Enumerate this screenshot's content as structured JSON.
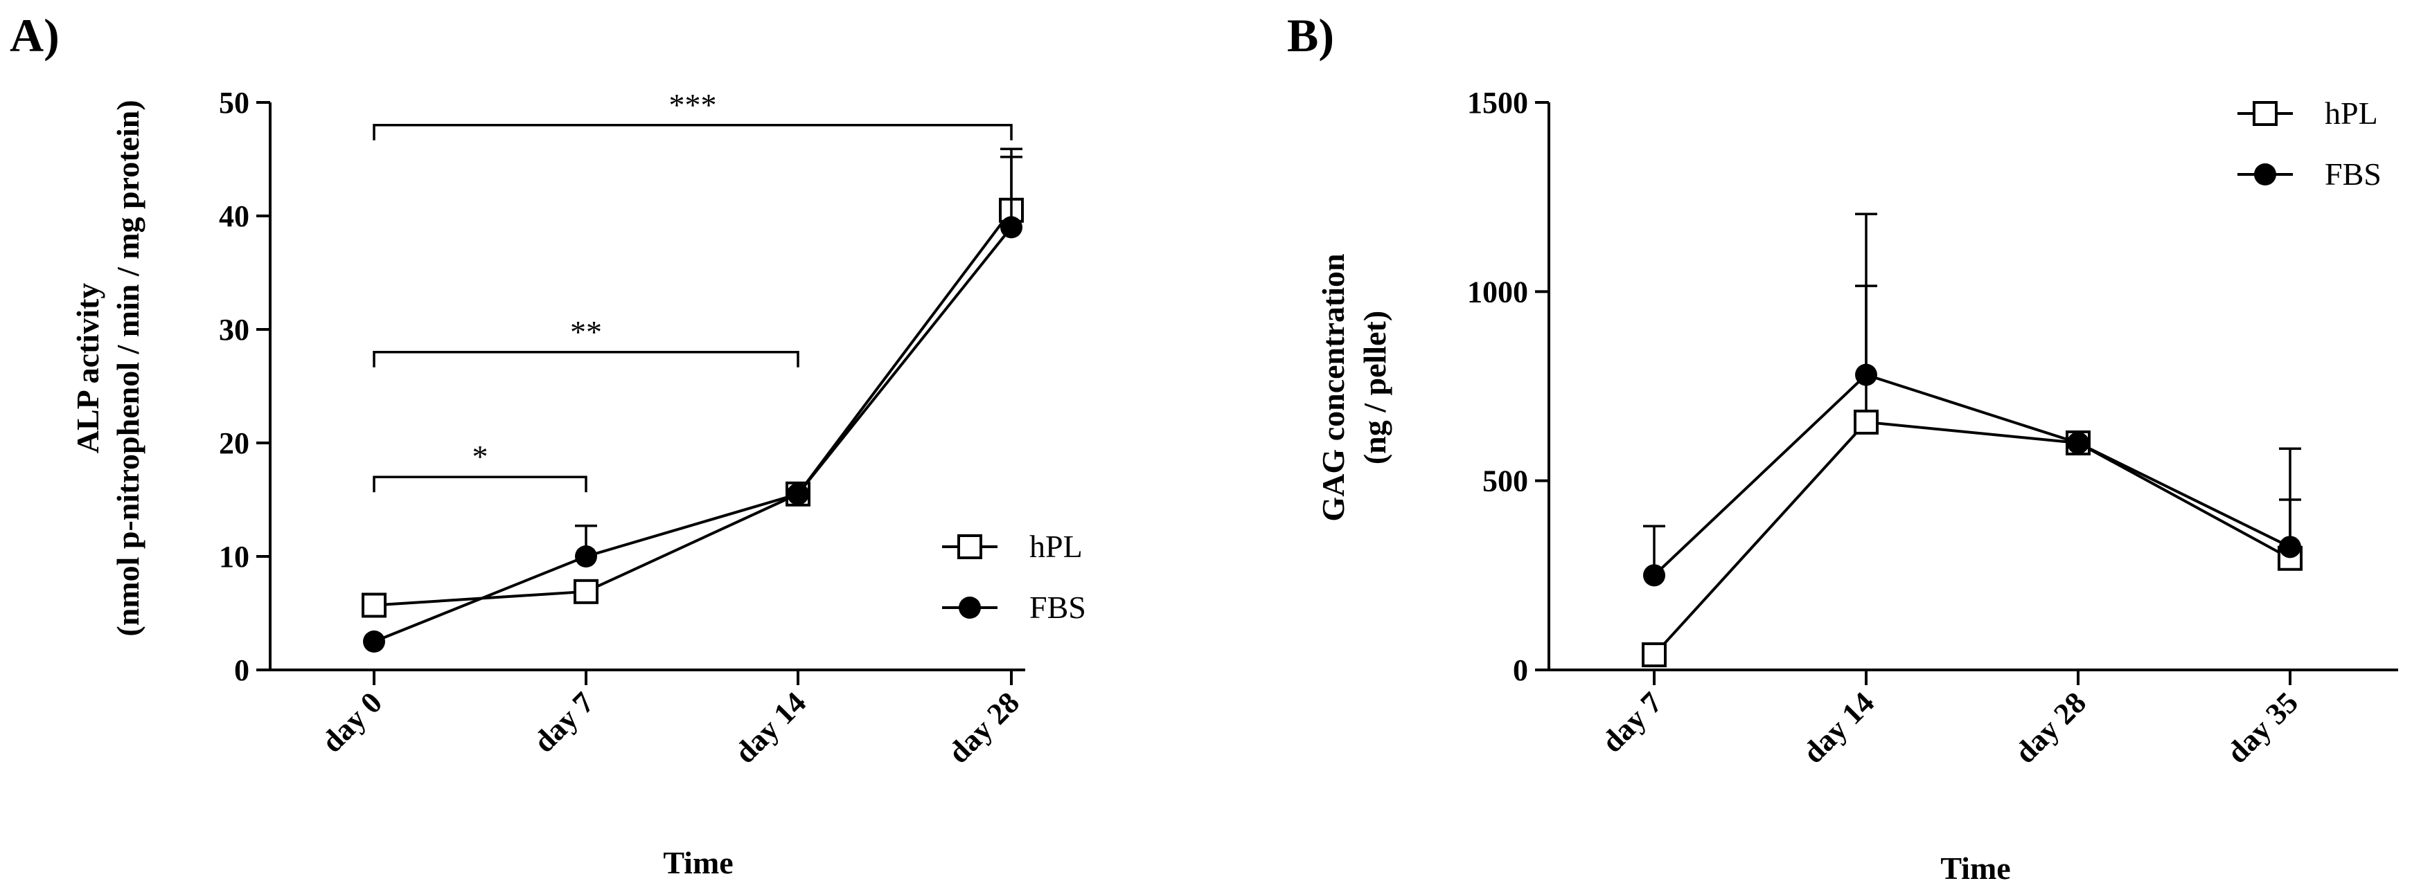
{
  "chart_data": [
    {
      "panel": "A)",
      "type": "line",
      "title": "",
      "xlabel": "Time",
      "ylabel": [
        "ALP activity",
        "(nmol p-nitrophenol / min / mg protein)"
      ],
      "categories": [
        "day 0",
        "day 7",
        "day 14",
        "day 28"
      ],
      "ylim": [
        0,
        50
      ],
      "yticks": [
        0,
        10,
        20,
        30,
        40,
        50
      ],
      "legend_position": "middle-right",
      "series": [
        {
          "name": "hPL",
          "marker": "open-square",
          "values": [
            5.7,
            6.9,
            15.5,
            40.5
          ],
          "error_upper": [
            null,
            null,
            null,
            45.9
          ]
        },
        {
          "name": "FBS",
          "marker": "filled-circle",
          "values": [
            2.5,
            10.0,
            15.5,
            39.0
          ],
          "error_upper": [
            null,
            12.7,
            null,
            45.2
          ]
        }
      ],
      "significance": [
        {
          "from": "day 0",
          "to": "day 7",
          "label": "*",
          "level": 17
        },
        {
          "from": "day 0",
          "to": "day 14",
          "label": "**",
          "level": 28
        },
        {
          "from": "day 0",
          "to": "day 28",
          "label": "***",
          "level": 48
        }
      ]
    },
    {
      "panel": "B)",
      "type": "line",
      "title": "",
      "xlabel": "Time",
      "ylabel": [
        "GAG concentration",
        "(ng / pellet)"
      ],
      "categories": [
        "day 7",
        "day 14",
        "day 28",
        "day 35"
      ],
      "ylim": [
        0,
        1500
      ],
      "yticks": [
        0,
        500,
        1000,
        1500
      ],
      "legend_position": "top-right",
      "series": [
        {
          "name": "hPL",
          "marker": "open-square",
          "values": [
            40,
            655,
            600,
            295
          ],
          "error_upper": [
            null,
            1015,
            null,
            450
          ]
        },
        {
          "name": "FBS",
          "marker": "filled-circle",
          "values": [
            250,
            780,
            600,
            325
          ],
          "error_upper": [
            380,
            1205,
            null,
            585
          ]
        }
      ],
      "significance": []
    }
  ]
}
